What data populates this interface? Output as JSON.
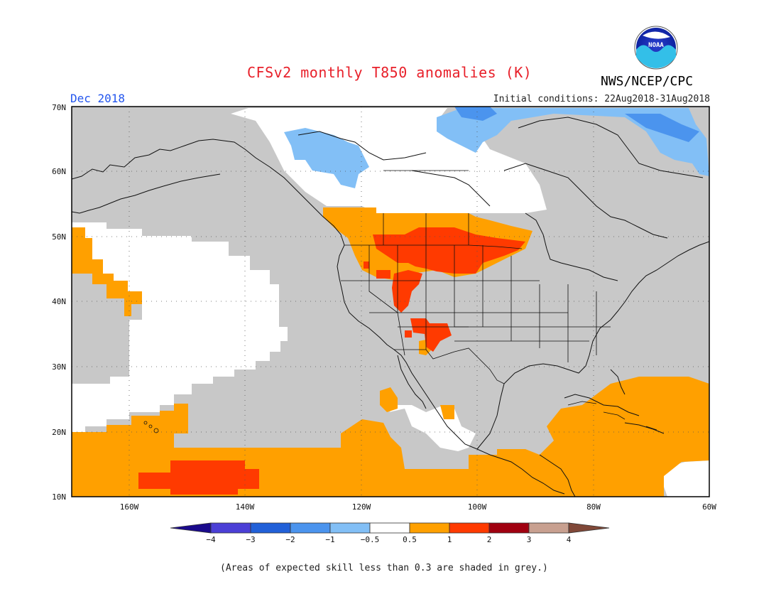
{
  "title": "CFSv2 monthly T850 anomalies (K)",
  "agency": "NWS/NCEP/CPC",
  "logo_text": "NOAA",
  "valid_month": "Dec 2018",
  "initial_conditions": "Initial conditions: 22Aug2018-31Aug2018",
  "footnote": "(Areas of expected skill less than 0.3 are shaded in grey.)",
  "map": {
    "lat_labels": [
      "70N",
      "60N",
      "50N",
      "40N",
      "30N",
      "20N",
      "10N"
    ],
    "lon_labels": [
      "160W",
      "140W",
      "120W",
      "100W",
      "80W",
      "60W"
    ],
    "lat_range": [
      10,
      70
    ],
    "lon_range": [
      -170,
      -60
    ]
  },
  "legend": {
    "colors": [
      "#1a0a8c",
      "#4b3fd6",
      "#2160d8",
      "#4b94ee",
      "#82bff6",
      "#ffffff",
      "#ffa000",
      "#ff3a00",
      "#a00010",
      "#c8a090",
      "#804838"
    ],
    "labels": [
      "−4",
      "−3",
      "−2",
      "−1",
      "−0.5",
      "0.5",
      "1",
      "2",
      "3",
      "4"
    ]
  },
  "colors": {
    "grey": "#c8c8c8",
    "orange": "#ffa000",
    "red": "#ff3a00",
    "light_blue": "#82bff6",
    "blue": "#4b94ee"
  }
}
